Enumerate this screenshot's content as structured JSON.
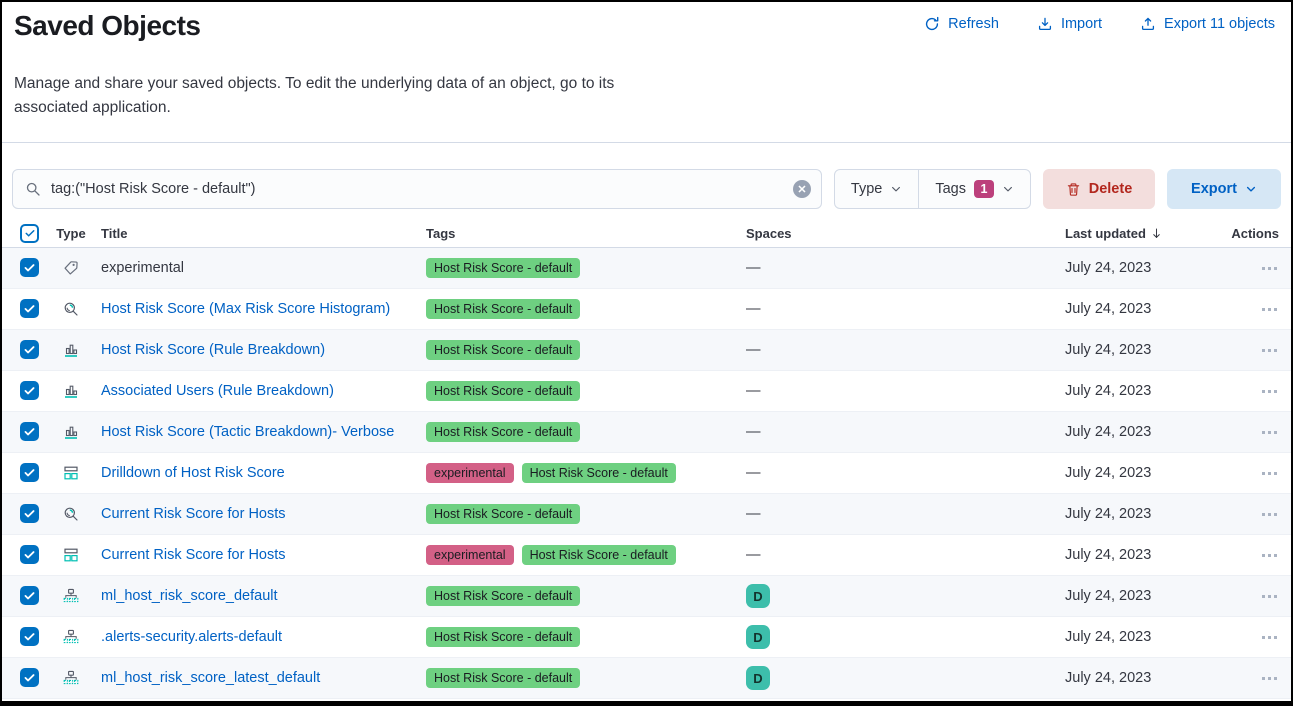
{
  "page": {
    "title": "Saved Objects",
    "description": "Manage and share your saved objects. To edit the underlying data of an object, go to its associated application."
  },
  "header_actions": {
    "refresh": "Refresh",
    "import": "Import",
    "export": "Export 11 objects"
  },
  "toolbar": {
    "search_value": "tag:(\"Host Risk Score - default\")",
    "type_filter_label": "Type",
    "tags_filter_label": "Tags",
    "tags_selected_count": "1",
    "delete_label": "Delete",
    "export_label": "Export"
  },
  "colors": {
    "link_blue": "#0061c4",
    "primary_blue": "#0071c2",
    "danger_red": "#b3271e",
    "tag_green": "#6ed081",
    "tag_pink": "#d36086",
    "tags_count_badge": "#bc407c",
    "space_avatar_teal": "#3dbeab",
    "icon_accent_teal": "#00bfb3"
  },
  "table": {
    "columns": [
      "Type",
      "Title",
      "Tags",
      "Spaces",
      "Last updated",
      "Actions"
    ],
    "sort": {
      "column": "Last updated",
      "direction": "desc"
    },
    "rows": [
      {
        "type": "tag",
        "title": "experimental",
        "is_link": false,
        "tags": [
          {
            "label": "Host Risk Score - default",
            "color": "green"
          }
        ],
        "spaces": {
          "kind": "dash",
          "label": "—"
        },
        "updated": "July 24, 2023"
      },
      {
        "type": "lens",
        "title": "Host Risk Score (Max Risk Score Histogram)",
        "is_link": true,
        "tags": [
          {
            "label": "Host Risk Score - default",
            "color": "green"
          }
        ],
        "spaces": {
          "kind": "dash",
          "label": "—"
        },
        "updated": "July 24, 2023"
      },
      {
        "type": "visualization",
        "title": "Host Risk Score (Rule Breakdown)",
        "is_link": true,
        "tags": [
          {
            "label": "Host Risk Score - default",
            "color": "green"
          }
        ],
        "spaces": {
          "kind": "dash",
          "label": "—"
        },
        "updated": "July 24, 2023"
      },
      {
        "type": "visualization",
        "title": "Associated Users (Rule Breakdown)",
        "is_link": true,
        "tags": [
          {
            "label": "Host Risk Score - default",
            "color": "green"
          }
        ],
        "spaces": {
          "kind": "dash",
          "label": "—"
        },
        "updated": "July 24, 2023"
      },
      {
        "type": "visualization",
        "title": "Host Risk Score (Tactic Breakdown)- Verbose",
        "is_link": true,
        "tags": [
          {
            "label": "Host Risk Score - default",
            "color": "green"
          }
        ],
        "spaces": {
          "kind": "dash",
          "label": "—"
        },
        "updated": "July 24, 2023"
      },
      {
        "type": "dashboard",
        "title": "Drilldown of Host Risk Score",
        "is_link": true,
        "tags": [
          {
            "label": "experimental",
            "color": "pink"
          },
          {
            "label": "Host Risk Score - default",
            "color": "green"
          }
        ],
        "spaces": {
          "kind": "dash",
          "label": "—"
        },
        "updated": "July 24, 2023"
      },
      {
        "type": "lens",
        "title": "Current Risk Score for Hosts",
        "is_link": true,
        "tags": [
          {
            "label": "Host Risk Score - default",
            "color": "green"
          }
        ],
        "spaces": {
          "kind": "dash",
          "label": "—"
        },
        "updated": "July 24, 2023"
      },
      {
        "type": "dashboard",
        "title": "Current Risk Score for Hosts",
        "is_link": true,
        "tags": [
          {
            "label": "experimental",
            "color": "pink"
          },
          {
            "label": "Host Risk Score - default",
            "color": "green"
          }
        ],
        "spaces": {
          "kind": "dash",
          "label": "—"
        },
        "updated": "July 24, 2023"
      },
      {
        "type": "index-pattern",
        "title": "ml_host_risk_score_default",
        "is_link": true,
        "tags": [
          {
            "label": "Host Risk Score - default",
            "color": "green"
          }
        ],
        "spaces": {
          "kind": "avatar",
          "label": "D"
        },
        "updated": "July 24, 2023"
      },
      {
        "type": "index-pattern",
        "title": ".alerts-security.alerts-default",
        "is_link": true,
        "tags": [
          {
            "label": "Host Risk Score - default",
            "color": "green"
          }
        ],
        "spaces": {
          "kind": "avatar",
          "label": "D"
        },
        "updated": "July 24, 2023"
      },
      {
        "type": "index-pattern",
        "title": "ml_host_risk_score_latest_default",
        "is_link": true,
        "tags": [
          {
            "label": "Host Risk Score - default",
            "color": "green"
          }
        ],
        "spaces": {
          "kind": "avatar",
          "label": "D"
        },
        "updated": "July 24, 2023"
      }
    ]
  }
}
